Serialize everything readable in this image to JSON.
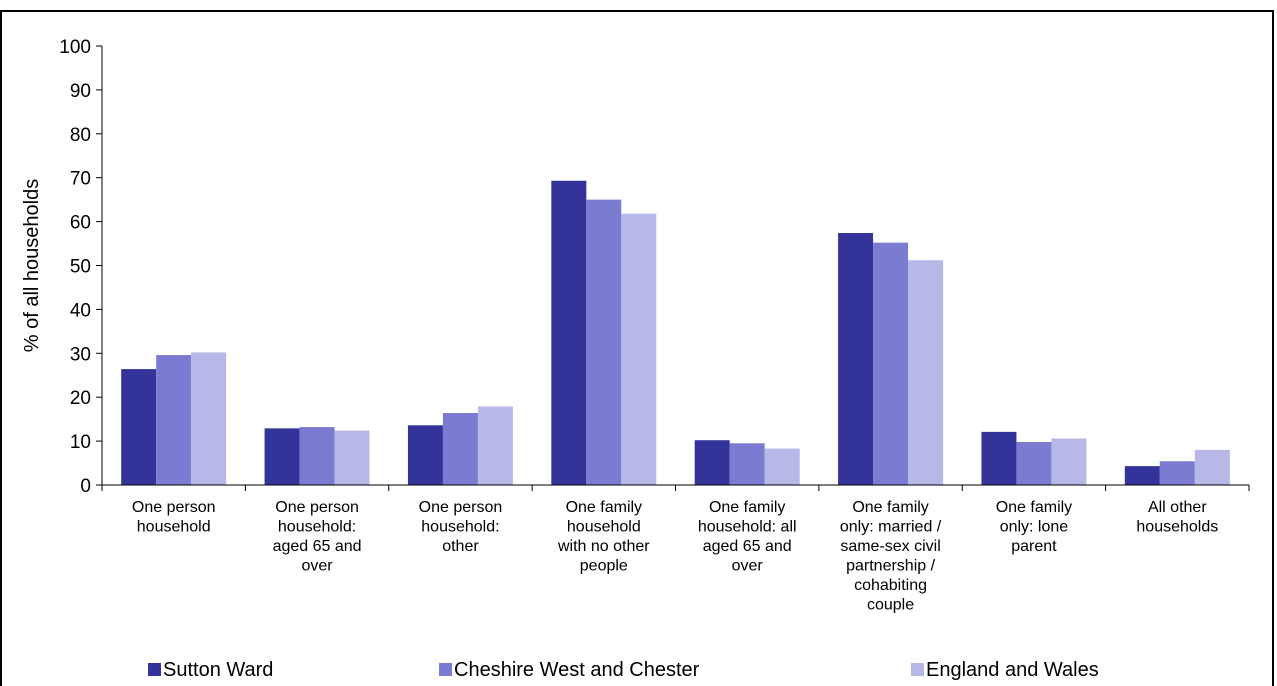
{
  "chart_data": {
    "type": "bar",
    "title": "",
    "xlabel": "",
    "ylabel": "% of all households",
    "ylim": [
      0,
      100
    ],
    "yticks": [
      0,
      10,
      20,
      30,
      40,
      50,
      60,
      70,
      80,
      90,
      100
    ],
    "grid": false,
    "legend_position": "bottom",
    "categories": [
      [
        "One person",
        "household"
      ],
      [
        "One person",
        "household:",
        "aged 65 and",
        "over"
      ],
      [
        "One person",
        "household:",
        "other"
      ],
      [
        "One family",
        "household",
        "with no other",
        "people"
      ],
      [
        "One family",
        "household: all",
        "aged 65 and",
        "over"
      ],
      [
        "One family",
        "only: married /",
        "same-sex civil",
        "partnership /",
        "cohabiting",
        "couple"
      ],
      [
        "One family",
        "only: lone",
        "parent"
      ],
      [
        "All other",
        "households"
      ]
    ],
    "series": [
      {
        "name": "Sutton Ward",
        "color": "#333399",
        "values": [
          26.4,
          12.9,
          13.6,
          69.3,
          10.2,
          57.4,
          12.1,
          4.3
        ]
      },
      {
        "name": "Cheshire West and Chester",
        "color": "#7b7bd1",
        "values": [
          29.6,
          13.2,
          16.4,
          65.0,
          9.5,
          55.2,
          9.8,
          5.4
        ]
      },
      {
        "name": "England and Wales",
        "color": "#b8b8e8",
        "values": [
          30.2,
          12.4,
          17.9,
          61.8,
          8.3,
          51.2,
          10.6,
          8.0
        ]
      }
    ]
  }
}
